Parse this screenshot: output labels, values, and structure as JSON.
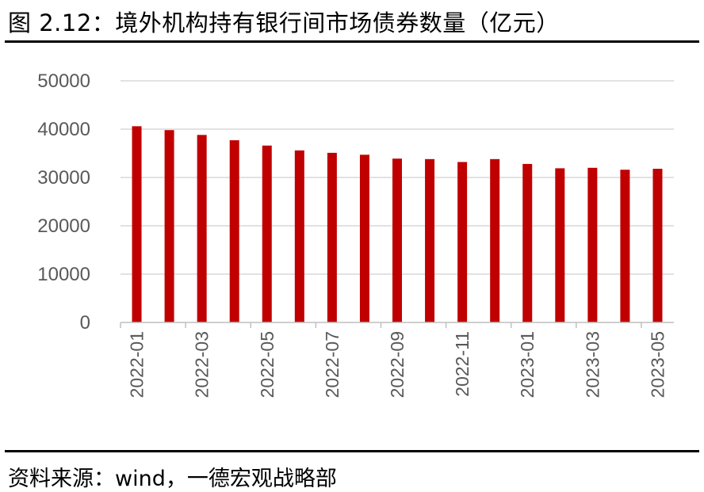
{
  "figure": {
    "title": "图 2.12：境外机构持有银行间市场债券数量（亿元）",
    "source": "资料来源：wind，一德宏观战略部"
  },
  "chart_data": {
    "type": "bar",
    "title": "境外机构持有银行间市场债券数量（亿元）",
    "xlabel": "",
    "ylabel": "",
    "categories": [
      "2022-01",
      "2022-02",
      "2022-03",
      "2022-04",
      "2022-05",
      "2022-06",
      "2022-07",
      "2022-08",
      "2022-09",
      "2022-10",
      "2022-11",
      "2022-12",
      "2023-01",
      "2023-02",
      "2023-03",
      "2023-04",
      "2023-05"
    ],
    "tick_labels": [
      "2022-01",
      "2022-03",
      "2022-05",
      "2022-07",
      "2022-09",
      "2022-11",
      "2023-01",
      "2023-03",
      "2023-05"
    ],
    "values": [
      40600,
      39800,
      38800,
      37700,
      36600,
      35600,
      35100,
      34700,
      33900,
      33800,
      33200,
      33800,
      32800,
      31900,
      32000,
      31600,
      31800
    ],
    "ylim": [
      0,
      50000
    ],
    "yticks": [
      0,
      10000,
      20000,
      30000,
      40000,
      50000
    ],
    "grid": true,
    "legend": "none",
    "bar_color": "#C00000",
    "grid_color": "#D9D9D9",
    "axis_color": "#BFBFBF",
    "tick_text_color": "#595959"
  }
}
